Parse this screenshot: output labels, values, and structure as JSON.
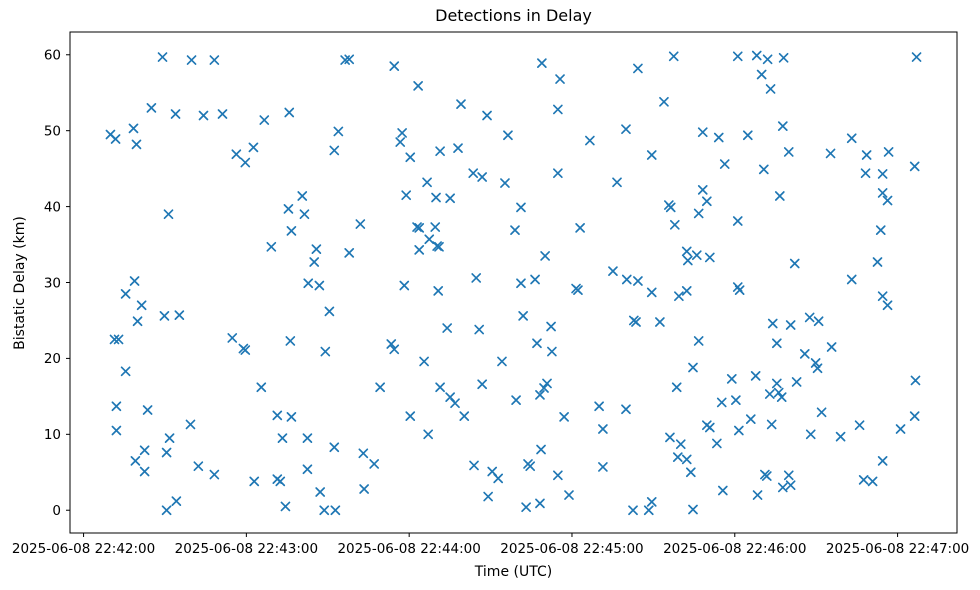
{
  "figure": {
    "title": "Detections in Delay",
    "xlabel": "Time (UTC)",
    "ylabel": "Bistatic Delay (km)"
  },
  "chart_data": {
    "type": "scatter",
    "title": "Detections in Delay",
    "xlabel": "Time (UTC)",
    "ylabel": "Bistatic Delay (km)",
    "marker": "x",
    "marker_color": "#1f77b4",
    "axis_color": "#000000",
    "background": "#ffffff",
    "grid": false,
    "legend": null,
    "x_unit": "seconds after 2025-06-08 22:42:00 UTC",
    "x_ticks": [
      {
        "t": 0,
        "label": "2025-06-08 22:42:00"
      },
      {
        "t": 60,
        "label": "2025-06-08 22:43:00"
      },
      {
        "t": 120,
        "label": "2025-06-08 22:44:00"
      },
      {
        "t": 180,
        "label": "2025-06-08 22:45:00"
      },
      {
        "t": 240,
        "label": "2025-06-08 22:46:00"
      },
      {
        "t": 300,
        "label": "2025-06-08 22:47:00"
      }
    ],
    "y_ticks": [
      0,
      10,
      20,
      30,
      40,
      50,
      60
    ],
    "xlim_seconds": [
      -5.0,
      321.9
    ],
    "ylim": [
      -3.0,
      63.0
    ],
    "points": [
      [
        29.1,
        59.7
      ],
      [
        39.8,
        59.3
      ],
      [
        48.2,
        59.3
      ],
      [
        25.0,
        53.0
      ],
      [
        33.9,
        52.2
      ],
      [
        44.2,
        52.0
      ],
      [
        51.2,
        52.2
      ],
      [
        66.6,
        51.4
      ],
      [
        75.8,
        52.4
      ],
      [
        9.9,
        49.5
      ],
      [
        11.8,
        48.9
      ],
      [
        18.4,
        50.3
      ],
      [
        19.5,
        48.2
      ],
      [
        56.3,
        46.9
      ],
      [
        59.6,
        45.8
      ],
      [
        62.6,
        47.8
      ],
      [
        96.4,
        59.3
      ],
      [
        97.9,
        59.4
      ],
      [
        114.5,
        58.5
      ],
      [
        123.3,
        55.9
      ],
      [
        139.1,
        53.5
      ],
      [
        148.7,
        52.0
      ],
      [
        93.9,
        49.9
      ],
      [
        92.4,
        47.4
      ],
      [
        117.4,
        49.7
      ],
      [
        116.7,
        48.5
      ],
      [
        120.4,
        46.5
      ],
      [
        131.4,
        47.3
      ],
      [
        138.0,
        47.7
      ],
      [
        143.6,
        44.4
      ],
      [
        146.9,
        43.9
      ],
      [
        156.4,
        49.4
      ],
      [
        155.3,
        43.1
      ],
      [
        80.6,
        41.4
      ],
      [
        118.9,
        41.5
      ],
      [
        126.6,
        43.2
      ],
      [
        129.9,
        41.2
      ],
      [
        135.1,
        41.1
      ],
      [
        168.9,
        58.9
      ],
      [
        175.6,
        56.8
      ],
      [
        204.3,
        58.2
      ],
      [
        217.5,
        59.8
      ],
      [
        241.1,
        59.8
      ],
      [
        213.9,
        53.8
      ],
      [
        174.8,
        52.8
      ],
      [
        199.9,
        50.2
      ],
      [
        186.6,
        48.7
      ],
      [
        228.2,
        49.8
      ],
      [
        234.1,
        49.1
      ],
      [
        209.4,
        46.8
      ],
      [
        236.3,
        45.6
      ],
      [
        174.8,
        44.4
      ],
      [
        196.6,
        43.2
      ],
      [
        228.2,
        42.2
      ],
      [
        248.1,
        59.9
      ],
      [
        252.1,
        59.4
      ],
      [
        258.0,
        59.6
      ],
      [
        307.0,
        59.7
      ],
      [
        249.9,
        57.4
      ],
      [
        253.2,
        55.5
      ],
      [
        257.7,
        50.6
      ],
      [
        244.8,
        49.4
      ],
      [
        283.1,
        49.0
      ],
      [
        259.9,
        47.2
      ],
      [
        275.3,
        47.0
      ],
      [
        288.6,
        46.8
      ],
      [
        296.7,
        47.2
      ],
      [
        250.7,
        44.9
      ],
      [
        306.3,
        45.3
      ],
      [
        288.2,
        44.4
      ],
      [
        294.5,
        44.3
      ],
      [
        294.5,
        41.8
      ],
      [
        296.3,
        40.8
      ],
      [
        256.6,
        41.4
      ],
      [
        31.3,
        39.0
      ],
      [
        75.5,
        39.7
      ],
      [
        76.6,
        36.8
      ],
      [
        69.2,
        34.7
      ],
      [
        18.8,
        30.2
      ],
      [
        15.5,
        28.5
      ],
      [
        21.4,
        27.0
      ],
      [
        19.9,
        24.9
      ],
      [
        29.8,
        25.6
      ],
      [
        35.3,
        25.7
      ],
      [
        11.4,
        22.5
      ],
      [
        12.9,
        22.5
      ],
      [
        54.8,
        22.7
      ],
      [
        58.9,
        21.3
      ],
      [
        59.6,
        21.1
      ],
      [
        76.2,
        22.3
      ],
      [
        81.4,
        39.0
      ],
      [
        102.0,
        37.7
      ],
      [
        122.9,
        37.3
      ],
      [
        123.7,
        37.2
      ],
      [
        129.6,
        37.3
      ],
      [
        127.4,
        35.7
      ],
      [
        130.3,
        34.8
      ],
      [
        131.0,
        34.7
      ],
      [
        123.7,
        34.3
      ],
      [
        85.8,
        34.4
      ],
      [
        97.9,
        33.9
      ],
      [
        85.0,
        32.7
      ],
      [
        82.8,
        29.9
      ],
      [
        86.9,
        29.6
      ],
      [
        144.7,
        30.6
      ],
      [
        118.2,
        29.6
      ],
      [
        130.7,
        28.9
      ],
      [
        90.6,
        26.2
      ],
      [
        134.0,
        24.0
      ],
      [
        145.8,
        23.8
      ],
      [
        89.1,
        20.9
      ],
      [
        113.4,
        21.9
      ],
      [
        114.5,
        21.2
      ],
      [
        125.5,
        19.6
      ],
      [
        154.2,
        19.6
      ],
      [
        161.2,
        39.9
      ],
      [
        159.0,
        36.9
      ],
      [
        183.0,
        37.2
      ],
      [
        215.7,
        40.2
      ],
      [
        216.4,
        39.9
      ],
      [
        229.7,
        40.7
      ],
      [
        226.7,
        39.1
      ],
      [
        217.9,
        37.6
      ],
      [
        241.1,
        38.1
      ],
      [
        170.1,
        33.5
      ],
      [
        222.3,
        34.1
      ],
      [
        222.7,
        32.9
      ],
      [
        226.0,
        33.6
      ],
      [
        230.8,
        33.3
      ],
      [
        161.2,
        29.9
      ],
      [
        166.4,
        30.4
      ],
      [
        195.1,
        31.5
      ],
      [
        200.2,
        30.4
      ],
      [
        204.3,
        30.2
      ],
      [
        209.4,
        28.7
      ],
      [
        181.5,
        29.2
      ],
      [
        182.2,
        29.0
      ],
      [
        219.4,
        28.2
      ],
      [
        222.3,
        28.9
      ],
      [
        162.0,
        25.6
      ],
      [
        172.3,
        24.2
      ],
      [
        202.8,
        25.0
      ],
      [
        203.6,
        24.8
      ],
      [
        212.4,
        24.8
      ],
      [
        167.1,
        22.0
      ],
      [
        172.6,
        20.9
      ],
      [
        226.7,
        22.3
      ],
      [
        293.8,
        36.9
      ],
      [
        262.1,
        32.5
      ],
      [
        292.6,
        32.7
      ],
      [
        283.1,
        30.4
      ],
      [
        241.1,
        29.4
      ],
      [
        241.8,
        29.0
      ],
      [
        294.5,
        28.2
      ],
      [
        296.3,
        27.0
      ],
      [
        267.6,
        25.4
      ],
      [
        270.9,
        24.9
      ],
      [
        254.0,
        24.6
      ],
      [
        260.6,
        24.4
      ],
      [
        255.5,
        22.0
      ],
      [
        265.8,
        20.6
      ],
      [
        275.7,
        21.5
      ],
      [
        269.8,
        19.4
      ],
      [
        270.5,
        18.7
      ],
      [
        15.5,
        18.3
      ],
      [
        65.5,
        16.2
      ],
      [
        12.1,
        13.7
      ],
      [
        23.6,
        13.2
      ],
      [
        12.1,
        10.5
      ],
      [
        39.4,
        11.3
      ],
      [
        31.7,
        9.5
      ],
      [
        22.5,
        7.9
      ],
      [
        30.6,
        7.6
      ],
      [
        19.1,
        6.5
      ],
      [
        22.5,
        5.1
      ],
      [
        42.3,
        5.8
      ],
      [
        48.2,
        4.7
      ],
      [
        62.9,
        3.8
      ],
      [
        71.4,
        12.5
      ],
      [
        73.3,
        9.5
      ],
      [
        71.4,
        4.1
      ],
      [
        72.5,
        3.8
      ],
      [
        74.4,
        0.5
      ],
      [
        34.2,
        1.2
      ],
      [
        30.6,
        0.0
      ],
      [
        109.3,
        16.2
      ],
      [
        131.4,
        16.2
      ],
      [
        146.9,
        16.6
      ],
      [
        135.1,
        14.9
      ],
      [
        136.9,
        14.1
      ],
      [
        140.3,
        12.4
      ],
      [
        120.4,
        12.4
      ],
      [
        76.6,
        12.3
      ],
      [
        82.5,
        9.5
      ],
      [
        92.4,
        8.3
      ],
      [
        103.1,
        7.5
      ],
      [
        107.1,
        6.1
      ],
      [
        82.5,
        5.4
      ],
      [
        103.4,
        2.8
      ],
      [
        87.2,
        2.4
      ],
      [
        88.7,
        0.0
      ],
      [
        92.8,
        0.0
      ],
      [
        127.0,
        10.0
      ],
      [
        143.9,
        5.9
      ],
      [
        150.6,
        5.1
      ],
      [
        152.8,
        4.2
      ],
      [
        149.1,
        1.8
      ],
      [
        224.6,
        18.8
      ],
      [
        238.9,
        17.3
      ],
      [
        170.8,
        16.7
      ],
      [
        169.7,
        16.1
      ],
      [
        168.2,
        15.2
      ],
      [
        159.4,
        14.5
      ],
      [
        177.1,
        12.3
      ],
      [
        190.0,
        13.7
      ],
      [
        199.9,
        13.3
      ],
      [
        218.6,
        16.2
      ],
      [
        235.2,
        14.2
      ],
      [
        240.4,
        14.5
      ],
      [
        191.4,
        10.7
      ],
      [
        229.7,
        11.2
      ],
      [
        230.8,
        10.9
      ],
      [
        216.1,
        9.6
      ],
      [
        220.1,
        8.7
      ],
      [
        233.4,
        8.8
      ],
      [
        168.6,
        8.0
      ],
      [
        219.0,
        7.0
      ],
      [
        222.3,
        6.7
      ],
      [
        163.8,
        6.1
      ],
      [
        164.6,
        5.8
      ],
      [
        191.4,
        5.7
      ],
      [
        223.8,
        5.0
      ],
      [
        174.8,
        4.6
      ],
      [
        235.6,
        2.6
      ],
      [
        178.9,
        2.0
      ],
      [
        163.1,
        0.4
      ],
      [
        168.2,
        0.9
      ],
      [
        209.4,
        1.1
      ],
      [
        208.3,
        0.0
      ],
      [
        202.5,
        0.0
      ],
      [
        224.6,
        0.1
      ],
      [
        247.7,
        17.7
      ],
      [
        255.5,
        16.7
      ],
      [
        262.8,
        16.9
      ],
      [
        252.9,
        15.3
      ],
      [
        256.2,
        15.5
      ],
      [
        257.3,
        14.9
      ],
      [
        306.6,
        17.1
      ],
      [
        245.9,
        12.0
      ],
      [
        253.6,
        11.3
      ],
      [
        241.5,
        10.5
      ],
      [
        272.0,
        12.9
      ],
      [
        268.0,
        10.0
      ],
      [
        279.0,
        9.7
      ],
      [
        286.0,
        11.2
      ],
      [
        301.1,
        10.7
      ],
      [
        306.3,
        12.4
      ],
      [
        294.5,
        6.5
      ],
      [
        251.1,
        4.7
      ],
      [
        251.8,
        4.5
      ],
      [
        259.9,
        4.6
      ],
      [
        257.7,
        3.0
      ],
      [
        260.6,
        3.3
      ],
      [
        248.4,
        2.0
      ],
      [
        287.5,
        4.0
      ],
      [
        290.8,
        3.8
      ]
    ]
  }
}
